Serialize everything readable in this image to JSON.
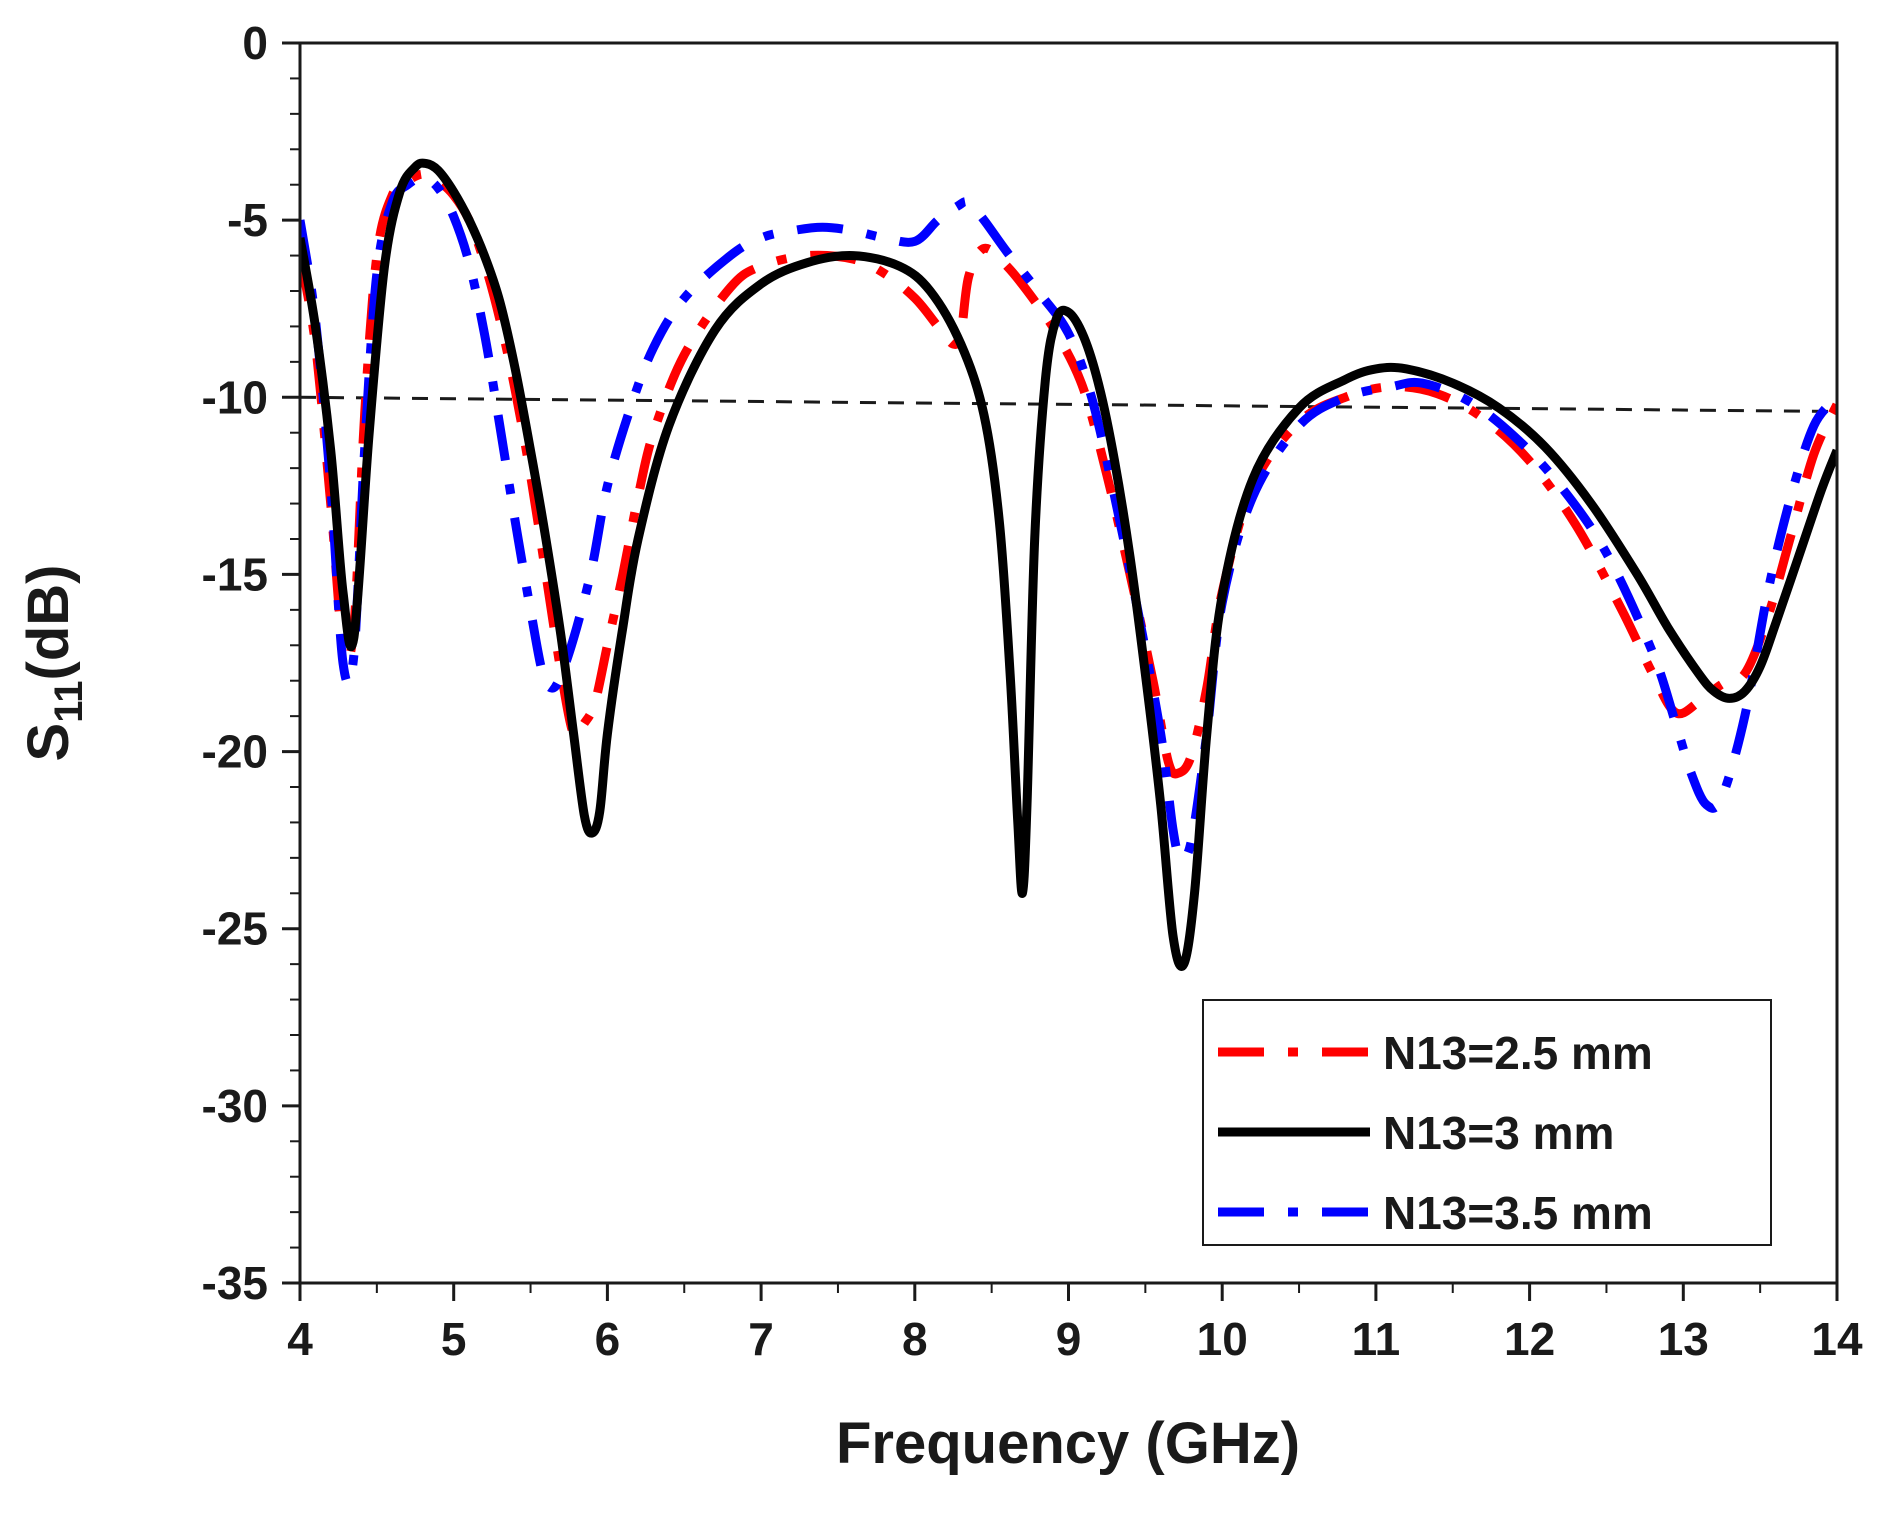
{
  "chart_data": {
    "type": "line",
    "title": "",
    "xlabel": "Frequency (GHz)",
    "ylabel_main": "S",
    "ylabel_sub": "11",
    "ylabel_tail": "(dB)",
    "xlim": [
      4,
      14
    ],
    "ylim": [
      -35,
      0
    ],
    "x_ticks": [
      4,
      5,
      6,
      7,
      8,
      9,
      10,
      11,
      12,
      13,
      14
    ],
    "y_ticks": [
      0,
      -5,
      -10,
      -15,
      -20,
      -25,
      -30,
      -35
    ],
    "x_tick_labels": [
      "4",
      "5",
      "6",
      "7",
      "8",
      "9",
      "10",
      "11",
      "12",
      "13",
      "14"
    ],
    "y_tick_labels": [
      "0",
      "-5",
      "-10",
      "-15",
      "-20",
      "-25",
      "-30",
      "-35"
    ],
    "legend_position": "bottom-right",
    "reference_line": {
      "name": "-10 dB reference",
      "style": "dashed",
      "color": "#1a1a1a",
      "x": [
        4,
        14
      ],
      "y": [
        -10,
        -10.4
      ]
    },
    "series": [
      {
        "name": "N13=2.5 mm",
        "color": "#ff0000",
        "style": "dash-dot",
        "x": [
          4.0,
          4.1,
          4.2,
          4.28,
          4.35,
          4.42,
          4.5,
          4.6,
          4.7,
          4.8,
          4.9,
          5.0,
          5.1,
          5.2,
          5.3,
          5.4,
          5.5,
          5.6,
          5.7,
          5.78,
          5.85,
          5.92,
          6.0,
          6.1,
          6.2,
          6.3,
          6.5,
          6.8,
          7.0,
          7.3,
          7.6,
          7.8,
          8.0,
          8.15,
          8.25,
          8.3,
          8.35,
          8.45,
          8.6,
          8.8,
          8.95,
          9.1,
          9.25,
          9.4,
          9.55,
          9.65,
          9.72,
          9.8,
          9.9,
          10.0,
          10.2,
          10.5,
          10.8,
          11.1,
          11.4,
          11.7,
          12.0,
          12.3,
          12.6,
          12.8,
          12.95,
          13.1,
          13.25,
          13.4,
          13.55,
          13.7,
          13.85,
          14.0
        ],
        "values": [
          -6.0,
          -8.5,
          -13.0,
          -17.0,
          -16.5,
          -10.5,
          -6.0,
          -4.3,
          -3.9,
          -3.7,
          -3.9,
          -4.3,
          -5.0,
          -6.2,
          -7.8,
          -9.8,
          -12.2,
          -15.0,
          -17.8,
          -19.5,
          -19.2,
          -18.6,
          -17.0,
          -15.0,
          -12.8,
          -11.0,
          -8.8,
          -6.9,
          -6.3,
          -6.0,
          -6.1,
          -6.5,
          -7.2,
          -8.0,
          -8.5,
          -8.2,
          -6.6,
          -5.8,
          -6.3,
          -7.4,
          -8.4,
          -9.8,
          -12.2,
          -15.0,
          -18.0,
          -20.3,
          -20.6,
          -20.1,
          -18.2,
          -15.5,
          -12.5,
          -10.7,
          -10.0,
          -9.7,
          -9.9,
          -10.6,
          -11.8,
          -13.6,
          -16.0,
          -17.8,
          -18.9,
          -18.6,
          -18.1,
          -17.8,
          -16.2,
          -13.9,
          -11.6,
          -10.2
        ]
      },
      {
        "name": "N13=3 mm",
        "color": "#000000",
        "style": "solid",
        "x": [
          4.0,
          4.1,
          4.2,
          4.28,
          4.35,
          4.45,
          4.55,
          4.65,
          4.75,
          4.82,
          4.9,
          5.0,
          5.1,
          5.2,
          5.3,
          5.4,
          5.5,
          5.6,
          5.7,
          5.78,
          5.85,
          5.9,
          5.95,
          6.0,
          6.1,
          6.2,
          6.4,
          6.7,
          7.0,
          7.3,
          7.6,
          7.9,
          8.1,
          8.3,
          8.45,
          8.55,
          8.62,
          8.67,
          8.7,
          8.73,
          8.78,
          8.85,
          8.92,
          9.0,
          9.1,
          9.2,
          9.3,
          9.4,
          9.5,
          9.6,
          9.68,
          9.75,
          9.82,
          9.9,
          10.0,
          10.2,
          10.5,
          10.8,
          11.0,
          11.2,
          11.5,
          11.8,
          12.1,
          12.4,
          12.7,
          12.9,
          13.1,
          13.2,
          13.3,
          13.4,
          13.5,
          13.6,
          13.75,
          13.9,
          14.0
        ],
        "values": [
          -5.5,
          -8.0,
          -11.5,
          -15.5,
          -16.8,
          -11.0,
          -6.3,
          -4.2,
          -3.5,
          -3.4,
          -3.6,
          -4.2,
          -5.0,
          -6.0,
          -7.3,
          -9.2,
          -11.5,
          -14.0,
          -16.8,
          -19.5,
          -21.8,
          -22.3,
          -21.7,
          -19.5,
          -16.5,
          -14.0,
          -10.8,
          -8.1,
          -6.8,
          -6.2,
          -6.0,
          -6.3,
          -7.0,
          -8.5,
          -10.5,
          -13.5,
          -17.8,
          -22.0,
          -24.0,
          -21.5,
          -14.0,
          -9.5,
          -7.8,
          -7.6,
          -8.3,
          -9.7,
          -11.8,
          -14.5,
          -17.8,
          -21.5,
          -25.2,
          -26.0,
          -24.0,
          -19.5,
          -15.6,
          -12.3,
          -10.3,
          -9.5,
          -9.2,
          -9.2,
          -9.6,
          -10.3,
          -11.4,
          -13.0,
          -15.0,
          -16.5,
          -17.8,
          -18.3,
          -18.5,
          -18.3,
          -17.6,
          -16.4,
          -14.5,
          -12.6,
          -11.5
        ]
      },
      {
        "name": "N13=3.5 mm",
        "color": "#0000ff",
        "style": "dash-dot",
        "x": [
          4.0,
          4.1,
          4.2,
          4.28,
          4.35,
          4.42,
          4.5,
          4.6,
          4.7,
          4.8,
          4.9,
          5.0,
          5.1,
          5.2,
          5.3,
          5.4,
          5.5,
          5.58,
          5.65,
          5.72,
          5.8,
          5.9,
          6.0,
          6.15,
          6.3,
          6.5,
          6.8,
          7.0,
          7.2,
          7.4,
          7.6,
          7.8,
          8.0,
          8.15,
          8.28,
          8.35,
          8.45,
          8.6,
          8.8,
          9.0,
          9.15,
          9.3,
          9.45,
          9.6,
          9.68,
          9.73,
          9.8,
          9.9,
          10.0,
          10.2,
          10.5,
          10.8,
          11.1,
          11.3,
          11.6,
          11.9,
          12.2,
          12.5,
          12.8,
          12.95,
          13.05,
          13.15,
          13.25,
          13.4,
          13.55,
          13.7,
          13.85,
          14.0
        ],
        "values": [
          -5.0,
          -7.8,
          -12.5,
          -17.5,
          -17.3,
          -11.5,
          -6.5,
          -4.5,
          -4.0,
          -3.8,
          -4.1,
          -4.9,
          -6.2,
          -8.2,
          -10.8,
          -13.5,
          -16.0,
          -17.8,
          -18.2,
          -17.6,
          -16.5,
          -14.8,
          -12.5,
          -10.3,
          -8.6,
          -7.2,
          -6.0,
          -5.5,
          -5.3,
          -5.2,
          -5.3,
          -5.5,
          -5.6,
          -5.0,
          -4.6,
          -4.5,
          -5.0,
          -5.9,
          -7.0,
          -8.2,
          -10.0,
          -12.8,
          -16.0,
          -19.5,
          -22.2,
          -23.0,
          -22.5,
          -19.5,
          -15.8,
          -12.8,
          -10.8,
          -10.0,
          -9.7,
          -9.6,
          -10.1,
          -11.1,
          -12.5,
          -14.4,
          -17.2,
          -19.2,
          -20.6,
          -21.5,
          -21.3,
          -19.0,
          -15.5,
          -12.8,
          -10.8,
          -10.0
        ]
      }
    ]
  }
}
